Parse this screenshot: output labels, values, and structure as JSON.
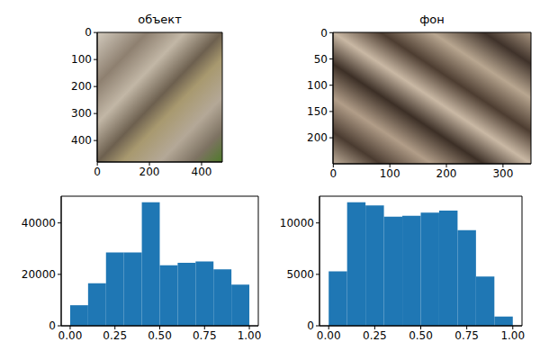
{
  "chart_data": [
    {
      "type": "image",
      "title": "объект",
      "xlim": [
        -0.5,
        479.5
      ],
      "ylim": [
        479.5,
        -0.5
      ],
      "xticks": [
        0,
        200,
        400
      ],
      "yticks": [
        0,
        100,
        200,
        300,
        400
      ]
    },
    {
      "type": "image",
      "title": "фон",
      "xlim": [
        -0.5,
        349.5
      ],
      "ylim": [
        249.5,
        -0.5
      ],
      "xticks": [
        0,
        100,
        200,
        300
      ],
      "yticks": [
        0,
        50,
        100,
        150,
        200
      ]
    },
    {
      "type": "histogram",
      "bins": [
        0,
        0.1,
        0.2,
        0.3,
        0.4,
        0.5,
        0.6,
        0.7,
        0.8,
        0.9,
        1
      ],
      "values": [
        8000,
        16500,
        28500,
        28500,
        48000,
        23500,
        24500,
        25000,
        22000,
        16000
      ],
      "color": "#1f77b4",
      "xlim": [
        -0.05,
        1.05
      ],
      "ylim": [
        0,
        50400
      ],
      "xticks": [
        {
          "value": 0,
          "label": "0.00"
        },
        {
          "value": 0.25,
          "label": "0.25"
        },
        {
          "value": 0.5,
          "label": "0.50"
        },
        {
          "value": 0.75,
          "label": "0.75"
        },
        {
          "value": 1,
          "label": "1.00"
        }
      ],
      "yticks": [
        0,
        20000,
        40000
      ]
    },
    {
      "type": "histogram",
      "bins": [
        0,
        0.1,
        0.2,
        0.3,
        0.4,
        0.5,
        0.6,
        0.7,
        0.8,
        0.9,
        1
      ],
      "values": [
        5300,
        12000,
        11700,
        10600,
        10700,
        11000,
        11200,
        9300,
        4800,
        900
      ],
      "color": "#1f77b4",
      "xlim": [
        -0.05,
        1.05
      ],
      "ylim": [
        0,
        12600
      ],
      "xticks": [
        {
          "value": 0,
          "label": "0.00"
        },
        {
          "value": 0.25,
          "label": "0.25"
        },
        {
          "value": 0.5,
          "label": "0.50"
        },
        {
          "value": 0.75,
          "label": "0.75"
        },
        {
          "value": 1,
          "label": "1.00"
        }
      ],
      "yticks": [
        0,
        5000,
        10000
      ]
    }
  ]
}
